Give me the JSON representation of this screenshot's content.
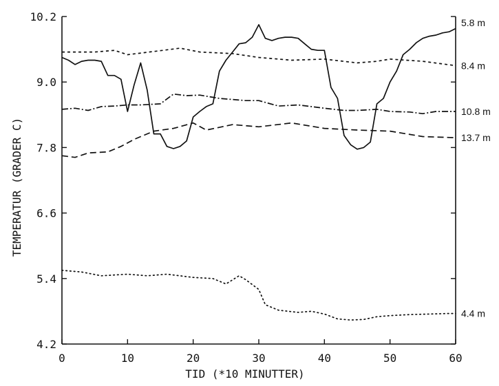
{
  "chart_data": {
    "type": "line",
    "xlabel": "TID (*10 MINUTTER)",
    "ylabel": "TEMPERATUR (GRADER C)",
    "xlim": [
      0,
      60
    ],
    "ylim": [
      4.2,
      10.2
    ],
    "xticks": [
      0,
      10,
      20,
      30,
      40,
      50,
      60
    ],
    "xtick_labels": [
      "0",
      "10",
      "20",
      "30",
      "40",
      "50",
      "60"
    ],
    "yticks": [
      4.2,
      5.4,
      6.6,
      7.8,
      9.0,
      10.2
    ],
    "ytick_labels": [
      "4.2",
      "5.4",
      "6.6",
      "7.8",
      "9.0",
      "10.2"
    ],
    "grid": false,
    "legend": "none",
    "series": [
      {
        "name": "5.8 m",
        "style": "solid",
        "x": [
          0,
          1,
          2,
          3,
          4,
          5,
          6,
          7,
          8,
          9,
          10,
          11,
          12,
          13,
          14,
          15,
          16,
          17,
          18,
          19,
          20,
          21,
          22,
          23,
          24,
          25,
          26,
          27,
          28,
          29,
          30,
          31,
          32,
          33,
          34,
          35,
          36,
          37,
          38,
          39,
          40,
          41,
          42,
          43,
          44,
          45,
          46,
          47,
          48,
          49,
          50,
          51,
          52,
          53,
          54,
          55,
          56,
          57,
          58,
          59,
          60
        ],
        "values": [
          9.45,
          9.4,
          9.32,
          9.38,
          9.4,
          9.4,
          9.38,
          9.12,
          9.12,
          9.05,
          8.46,
          8.95,
          9.35,
          8.85,
          8.05,
          8.05,
          7.82,
          7.78,
          7.82,
          7.92,
          8.36,
          8.46,
          8.55,
          8.6,
          9.2,
          9.4,
          9.55,
          9.7,
          9.72,
          9.82,
          10.05,
          9.8,
          9.76,
          9.8,
          9.82,
          9.82,
          9.8,
          9.7,
          9.6,
          9.58,
          9.58,
          8.9,
          8.7,
          8.02,
          7.85,
          7.77,
          7.8,
          7.9,
          8.6,
          8.7,
          9.0,
          9.2,
          9.5,
          9.6,
          9.72,
          9.8,
          9.84,
          9.86,
          9.9,
          9.92,
          9.98
        ]
      },
      {
        "name": "8.4 m",
        "style": "short-dash",
        "x": [
          0,
          5,
          8,
          10,
          14,
          18,
          21,
          26,
          30,
          35,
          40,
          45,
          48,
          50,
          55,
          60
        ],
        "values": [
          9.55,
          9.55,
          9.58,
          9.5,
          9.56,
          9.62,
          9.55,
          9.52,
          9.45,
          9.4,
          9.42,
          9.35,
          9.38,
          9.42,
          9.38,
          9.3
        ]
      },
      {
        "name": "10.8 m",
        "style": "dash-dot",
        "x": [
          0,
          2,
          4,
          6,
          8,
          10,
          12,
          15,
          17,
          19,
          21,
          24,
          28,
          30,
          33,
          36,
          40,
          43,
          45,
          48,
          50,
          53,
          55,
          57,
          60
        ],
        "values": [
          8.5,
          8.52,
          8.48,
          8.55,
          8.56,
          8.58,
          8.58,
          8.6,
          8.78,
          8.75,
          8.76,
          8.7,
          8.66,
          8.66,
          8.56,
          8.58,
          8.52,
          8.48,
          8.48,
          8.5,
          8.46,
          8.45,
          8.42,
          8.46,
          8.46
        ]
      },
      {
        "name": "13.7 m",
        "style": "long-dash",
        "x": [
          0,
          2,
          4,
          7,
          9,
          11,
          14,
          17,
          20,
          22,
          26,
          30,
          35,
          40,
          45,
          50,
          55,
          60
        ],
        "values": [
          7.65,
          7.62,
          7.7,
          7.72,
          7.82,
          7.95,
          8.1,
          8.15,
          8.25,
          8.12,
          8.22,
          8.18,
          8.25,
          8.15,
          8.12,
          8.1,
          8.0,
          7.98
        ]
      },
      {
        "name": "4.4 m",
        "style": "dotted",
        "x": [
          0,
          3,
          6,
          10,
          13,
          16,
          20,
          23,
          25,
          27,
          28,
          30,
          31,
          33,
          36,
          38,
          40,
          42,
          44,
          46,
          48,
          50,
          53,
          56,
          59,
          60
        ],
        "values": [
          5.55,
          5.52,
          5.45,
          5.48,
          5.45,
          5.48,
          5.42,
          5.4,
          5.3,
          5.45,
          5.38,
          5.2,
          4.92,
          4.82,
          4.78,
          4.8,
          4.75,
          4.66,
          4.64,
          4.65,
          4.7,
          4.72,
          4.74,
          4.75,
          4.76,
          4.76
        ]
      }
    ],
    "series_labels": [
      "5.8 m",
      "8.4 m",
      "10.8 m",
      "13.7 m",
      "4.4 m"
    ]
  }
}
